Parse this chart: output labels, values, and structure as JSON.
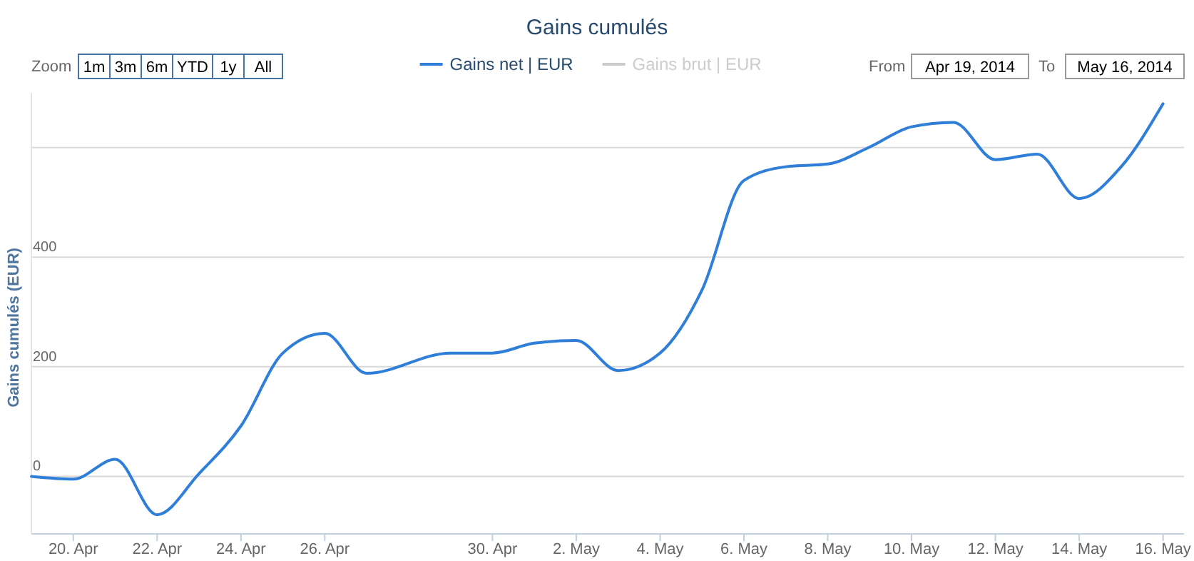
{
  "chart_data": {
    "type": "line",
    "title": "Gains cumulés",
    "ylabel": "Gains cumulés (EUR)",
    "x": [
      "2014-04-19",
      "2014-04-20",
      "2014-04-21",
      "2014-04-22",
      "2014-04-23",
      "2014-04-24",
      "2014-04-25",
      "2014-04-26",
      "2014-04-27",
      "2014-04-29",
      "2014-04-30",
      "2014-05-01",
      "2014-05-02",
      "2014-05-03",
      "2014-05-04",
      "2014-05-05",
      "2014-05-06",
      "2014-05-07",
      "2014-05-08",
      "2014-05-09",
      "2014-05-10",
      "2014-05-11",
      "2014-05-12",
      "2014-05-13",
      "2014-05-14",
      "2014-05-15",
      "2014-05-16"
    ],
    "series": [
      {
        "name": "Gains net | EUR",
        "color": "#2f7ed8",
        "values": [
          0,
          -5,
          31,
          -70,
          5,
          92,
          225,
          261,
          188,
          225,
          225,
          243,
          248,
          193,
          225,
          340,
          540,
          565,
          570,
          601,
          638,
          646,
          578,
          588,
          507,
          565,
          680
        ]
      },
      {
        "name": "Gains brut | EUR",
        "color": "#cccccc",
        "values": [
          null,
          null,
          null,
          null,
          null,
          null,
          null,
          null,
          null,
          null,
          null,
          null,
          null,
          null,
          null,
          null,
          null,
          null,
          null,
          null,
          null,
          null,
          null,
          null,
          null,
          null,
          null
        ]
      }
    ],
    "xlim": [
      "2014-04-19",
      "2014-05-16T12:00"
    ],
    "xticks": [
      {
        "value": "2014-04-20",
        "label": "20. Apr"
      },
      {
        "value": "2014-04-22",
        "label": "22. Apr"
      },
      {
        "value": "2014-04-24",
        "label": "24. Apr"
      },
      {
        "value": "2014-04-26",
        "label": "26. Apr"
      },
      {
        "value": "2014-04-30",
        "label": "30. Apr"
      },
      {
        "value": "2014-05-02",
        "label": "2. May"
      },
      {
        "value": "2014-05-04",
        "label": "4. May"
      },
      {
        "value": "2014-05-06",
        "label": "6. May"
      },
      {
        "value": "2014-05-08",
        "label": "8. May"
      },
      {
        "value": "2014-05-10",
        "label": "10. May"
      },
      {
        "value": "2014-05-12",
        "label": "12. May"
      },
      {
        "value": "2014-05-14",
        "label": "14. May"
      },
      {
        "value": "2014-05-16",
        "label": "16. May"
      }
    ],
    "ylim": [
      -105,
      700
    ],
    "yticks": [
      0,
      200,
      400,
      {
        "value": 600,
        "label": null
      }
    ],
    "grid": "y",
    "legend": "top",
    "marker": "none",
    "line_style": "solid",
    "annotations": [
      "Zoom",
      "1m",
      "3m",
      "6m",
      "YTD",
      "1y",
      "All",
      "From",
      "Apr 19, 2014",
      "To",
      "May 16, 2014"
    ]
  }
}
